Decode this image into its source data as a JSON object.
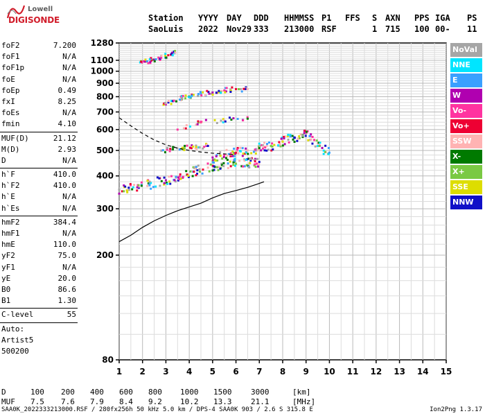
{
  "logo": {
    "line1": "Lowell",
    "line2": "DIGISONDE"
  },
  "header": {
    "labels": [
      "Station",
      "YYYY",
      "DAY",
      "DDD",
      "HHMMSS",
      "P1",
      "FFS",
      "S",
      "AXN",
      "PPS",
      "IGA",
      "PS"
    ],
    "values": [
      "SaoLuis",
      "2022",
      "Nov29",
      "333",
      "213000",
      "RSF",
      "1",
      "715",
      "100",
      "00-",
      "11"
    ]
  },
  "params": [
    {
      "name": "foF2",
      "value": "7.200"
    },
    {
      "name": "foF1",
      "value": "N/A"
    },
    {
      "name": "foF1p",
      "value": "N/A"
    },
    {
      "name": "foE",
      "value": "N/A"
    },
    {
      "name": "foEp",
      "value": "0.49"
    },
    {
      "name": "fxI",
      "value": "8.25"
    },
    {
      "name": "foEs",
      "value": "N/A"
    },
    {
      "name": "fmin",
      "value": "4.10"
    },
    {
      "sep": true
    },
    {
      "name": "MUF(D)",
      "value": "21.12"
    },
    {
      "name": "M(D)",
      "value": "2.93"
    },
    {
      "name": "D",
      "value": "N/A"
    },
    {
      "sep": true
    },
    {
      "name": "h`F",
      "value": "410.0"
    },
    {
      "name": "h`F2",
      "value": "410.0"
    },
    {
      "name": "h`E",
      "value": "N/A"
    },
    {
      "name": "h`Es",
      "value": "N/A"
    },
    {
      "sep": true
    },
    {
      "name": "hmF2",
      "value": "384.4"
    },
    {
      "name": "hmF1",
      "value": "N/A"
    },
    {
      "name": "hmE",
      "value": "110.0"
    },
    {
      "name": "yF2",
      "value": "75.0"
    },
    {
      "name": "yF1",
      "value": "N/A"
    },
    {
      "name": "yE",
      "value": "20.0"
    },
    {
      "name": "B0",
      "value": "86.6"
    },
    {
      "name": "B1",
      "value": "1.30"
    },
    {
      "sep": true
    },
    {
      "name": "C-level",
      "value": "55"
    },
    {
      "sep": true
    },
    {
      "text": "Auto:"
    },
    {
      "text": "Artist5"
    },
    {
      "text": "500200"
    }
  ],
  "legend": [
    {
      "label": "NoVal",
      "color": "#a6a6a6"
    },
    {
      "label": "NNE",
      "color": "#00e5ff"
    },
    {
      "label": "E",
      "color": "#3aa0ff"
    },
    {
      "label": "W",
      "color": "#b000b0"
    },
    {
      "label": "Vo-",
      "color": "#ff33a0"
    },
    {
      "label": "Vo+",
      "color": "#ee0033"
    },
    {
      "label": "SSW",
      "color": "#ffb3b3"
    },
    {
      "label": "X-",
      "color": "#007a00"
    },
    {
      "label": "X+",
      "color": "#7ac943"
    },
    {
      "label": "SSE",
      "color": "#dddd00"
    },
    {
      "label": "NNW",
      "color": "#1010c8"
    }
  ],
  "muf_table": {
    "row1_label": "D",
    "row1": [
      "100",
      "200",
      "400",
      "600",
      "800",
      "1000",
      "1500",
      "3000",
      "[km]"
    ],
    "row2_label": "MUF",
    "row2": [
      "7.5",
      "7.6",
      "7.9",
      "8.4",
      "9.2",
      "10.2",
      "13.3",
      "21.1",
      "[MHz]"
    ]
  },
  "footer": {
    "left": "SAA0K_2022333213000.RSF / 280fx256h 50 kHz 5.0 km / DPS-4 SAA0K 903 / 2.6 S 315.8 E",
    "right": "Ion2Png 1.3.17"
  },
  "chart_data": {
    "type": "scatter",
    "title": "",
    "xlabel": "",
    "ylabel": "",
    "xlim": [
      1,
      15
    ],
    "ylim": [
      80,
      1280
    ],
    "x_ticks": [
      1,
      2,
      3,
      4,
      5,
      6,
      7,
      8,
      9,
      10,
      11,
      12,
      13,
      14,
      15
    ],
    "y_ticks": [
      80,
      200,
      300,
      400,
      500,
      600,
      700,
      800,
      900,
      1000,
      1100,
      1280
    ],
    "y_scale": "log",
    "grid": true,
    "series": [
      {
        "name": "",
        "values": [
          [
            1.0,
            355
          ],
          [
            1.6,
            362
          ],
          [
            2.3,
            372
          ],
          [
            3.0,
            385
          ],
          [
            3.6,
            398
          ],
          [
            4.2,
            415
          ],
          [
            4.8,
            430
          ],
          [
            5.4,
            440
          ],
          [
            6.0,
            445
          ],
          [
            6.6,
            448
          ],
          [
            7.0,
            452
          ]
        ]
      },
      {
        "name": "",
        "values": [
          [
            5.0,
            470
          ],
          [
            5.5,
            480
          ],
          [
            6.0,
            490
          ],
          [
            6.5,
            500
          ],
          [
            7.0,
            510
          ],
          [
            7.5,
            520
          ],
          [
            8.0,
            540
          ],
          [
            8.5,
            560
          ],
          [
            9.0,
            580
          ],
          [
            9.5,
            520
          ],
          [
            10.0,
            490
          ]
        ]
      },
      {
        "name": "",
        "values": [
          [
            2.8,
            500
          ],
          [
            3.3,
            505
          ],
          [
            3.8,
            510
          ],
          [
            4.3,
            515
          ],
          [
            4.8,
            520
          ]
        ]
      },
      {
        "name": "",
        "values": [
          [
            2.9,
            745
          ],
          [
            3.3,
            770
          ],
          [
            3.7,
            790
          ],
          [
            4.1,
            805
          ],
          [
            4.5,
            820
          ],
          [
            5.0,
            830
          ],
          [
            5.5,
            845
          ],
          [
            6.0,
            855
          ],
          [
            6.5,
            855
          ]
        ]
      },
      {
        "name": "",
        "values": [
          [
            1.9,
            1080
          ],
          [
            2.2,
            1090
          ],
          [
            2.5,
            1105
          ],
          [
            2.8,
            1125
          ],
          [
            3.1,
            1150
          ],
          [
            3.4,
            1175
          ]
        ]
      },
      {
        "name": "",
        "values": [
          [
            3.5,
            600
          ],
          [
            4.5,
            640
          ],
          [
            5.5,
            650
          ],
          [
            6.5,
            660
          ]
        ]
      }
    ],
    "trace_profile": [
      [
        1.0,
        225
      ],
      [
        1.5,
        238
      ],
      [
        2.0,
        255
      ],
      [
        2.5,
        270
      ],
      [
        3.0,
        283
      ],
      [
        3.5,
        295
      ],
      [
        4.0,
        305
      ],
      [
        4.5,
        315
      ],
      [
        5.0,
        330
      ],
      [
        5.5,
        343
      ],
      [
        6.0,
        352
      ],
      [
        6.5,
        362
      ],
      [
        6.9,
        372
      ],
      [
        7.2,
        380
      ]
    ],
    "dashed_profile": [
      [
        1.0,
        665
      ],
      [
        1.5,
        620
      ],
      [
        2.0,
        580
      ],
      [
        2.5,
        548
      ],
      [
        3.0,
        525
      ],
      [
        3.5,
        510
      ],
      [
        4.0,
        500
      ],
      [
        4.5,
        493
      ],
      [
        5.0,
        488
      ],
      [
        5.5,
        485
      ],
      [
        6.0,
        482
      ]
    ]
  }
}
